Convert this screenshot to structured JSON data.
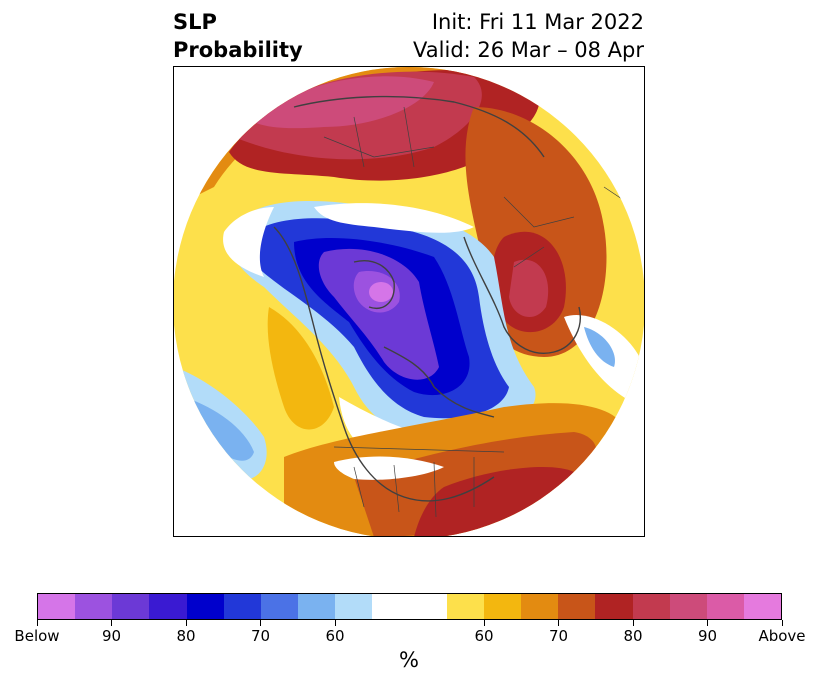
{
  "title": {
    "left": "SLP\nProbability",
    "left_line1": "SLP",
    "left_line2": "Probability",
    "right_line1": "Init: Fri 11 Mar 2022",
    "right_line2": "Valid: 26 Mar – 08 Apr"
  },
  "map": {
    "projection": "north-polar-stereographic",
    "variable": "SLP",
    "field": "probability"
  },
  "colorbar": {
    "unit_label": "%",
    "colors": [
      "#d575e8",
      "#9c52e0",
      "#6c39d6",
      "#3a1ad2",
      "#0000cc",
      "#2238d8",
      "#4b72e6",
      "#7ab2f0",
      "#b2dcf9",
      "#ffffff",
      "#ffffff",
      "#fde04b",
      "#f3b70f",
      "#e38b11",
      "#c85519",
      "#b02323",
      "#c23a4f",
      "#cd4b7a",
      "#db5ba7",
      "#e57ade"
    ],
    "ticks": [
      {
        "label": "Below",
        "index": 0
      },
      {
        "label": "90",
        "index": 2
      },
      {
        "label": "80",
        "index": 4
      },
      {
        "label": "70",
        "index": 6
      },
      {
        "label": "60",
        "index": 8
      },
      {
        "label": "60",
        "index": 12
      },
      {
        "label": "70",
        "index": 14
      },
      {
        "label": "80",
        "index": 16
      },
      {
        "label": "90",
        "index": 18
      },
      {
        "label": "Above",
        "index": 20
      }
    ]
  },
  "regions": [
    {
      "name": "eurasia-above",
      "color": "#c23a4f"
    },
    {
      "name": "north-pole-below",
      "color": "#0000cc"
    },
    {
      "name": "scandinavia-above",
      "color": "#b02323"
    },
    {
      "name": "north-america-above",
      "color": "#c85519"
    },
    {
      "name": "pacific-below",
      "color": "#7ab2f0"
    }
  ]
}
